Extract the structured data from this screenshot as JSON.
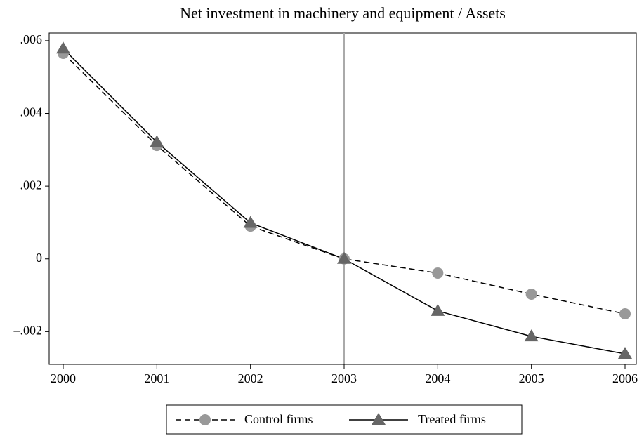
{
  "chart_data": {
    "type": "line",
    "title": "Net investment in machinery and equipment / Assets",
    "x": [
      2000,
      2001,
      2002,
      2003,
      2004,
      2005,
      2006
    ],
    "series": [
      {
        "name": "Control firms",
        "color": "#999999",
        "line_color": "#000000",
        "dash": true,
        "marker": "circle",
        "values": [
          0.00565,
          0.00312,
          0.0009,
          0,
          -0.00039,
          -0.00097,
          -0.00151
        ]
      },
      {
        "name": "Treated firms",
        "color": "#666666",
        "line_color": "#000000",
        "dash": false,
        "marker": "triangle",
        "values": [
          0.00578,
          0.00321,
          0.00099,
          0,
          -0.00143,
          -0.00213,
          -0.00261
        ]
      }
    ],
    "xlim": [
      1999.85,
      2006.12
    ],
    "xticks": [
      2000,
      2001,
      2002,
      2003,
      2004,
      2005,
      2006
    ],
    "ylim": [
      -0.0029,
      0.00621
    ],
    "yticks": [
      {
        "value": -0.002,
        "label": "–.002"
      },
      0,
      {
        "value": 0.002,
        "label": ".002"
      },
      {
        "value": 0.004,
        "label": ".004"
      },
      {
        "value": 0.006,
        "label": ".006"
      }
    ],
    "vline": 2003,
    "vline_color": "#aaaaaa",
    "legend": "bottom"
  }
}
